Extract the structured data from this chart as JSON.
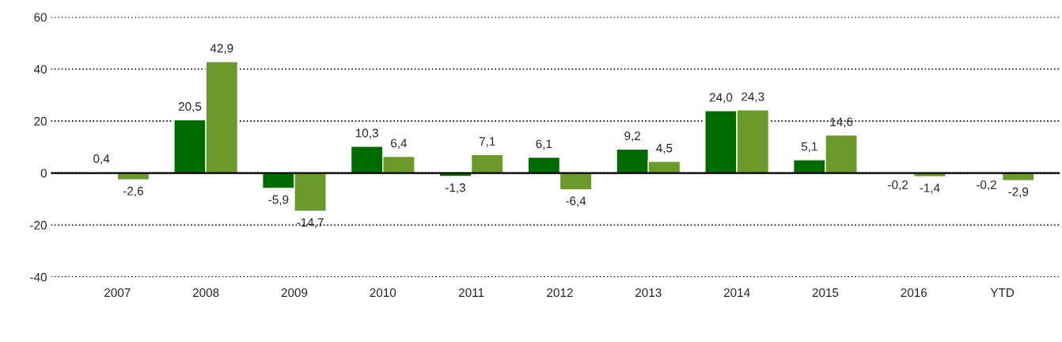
{
  "chart_data": {
    "type": "bar",
    "categories": [
      "2007",
      "2008",
      "2009",
      "2010",
      "2011",
      "2012",
      "2013",
      "2014",
      "2015",
      "2016",
      "YTD"
    ],
    "series": [
      {
        "color": "#006b00",
        "values": [
          0.4,
          20.5,
          -5.9,
          10.3,
          -1.3,
          6.1,
          9.2,
          24.0,
          5.1,
          -0.2,
          -0.2
        ],
        "value_labels": [
          "0,4",
          "20,5",
          "-5,9",
          "10,3",
          "-1,3",
          "6,1",
          "9,2",
          "24,0",
          "5,1",
          "-0,2",
          "-0,2"
        ]
      },
      {
        "color": "#6b9a2a",
        "values": [
          -2.6,
          42.9,
          -14.7,
          6.4,
          7.1,
          -6.4,
          4.5,
          24.3,
          14.6,
          -1.4,
          -2.9
        ],
        "value_labels": [
          "-2,6",
          "42,9",
          "-14,7",
          "6,4",
          "7,1",
          "-6,4",
          "4,5",
          "24,3",
          "14,6",
          "-1,4",
          "-2,9"
        ]
      }
    ],
    "ylim": [
      -40,
      60
    ],
    "yticks": [
      -40,
      -20,
      0,
      20,
      40,
      60
    ],
    "grid": "y",
    "line_style": "dotted",
    "ref_lines": [
      {
        "axis": "y",
        "value": 0,
        "color": "#000000",
        "line_style": "solid"
      }
    ]
  }
}
